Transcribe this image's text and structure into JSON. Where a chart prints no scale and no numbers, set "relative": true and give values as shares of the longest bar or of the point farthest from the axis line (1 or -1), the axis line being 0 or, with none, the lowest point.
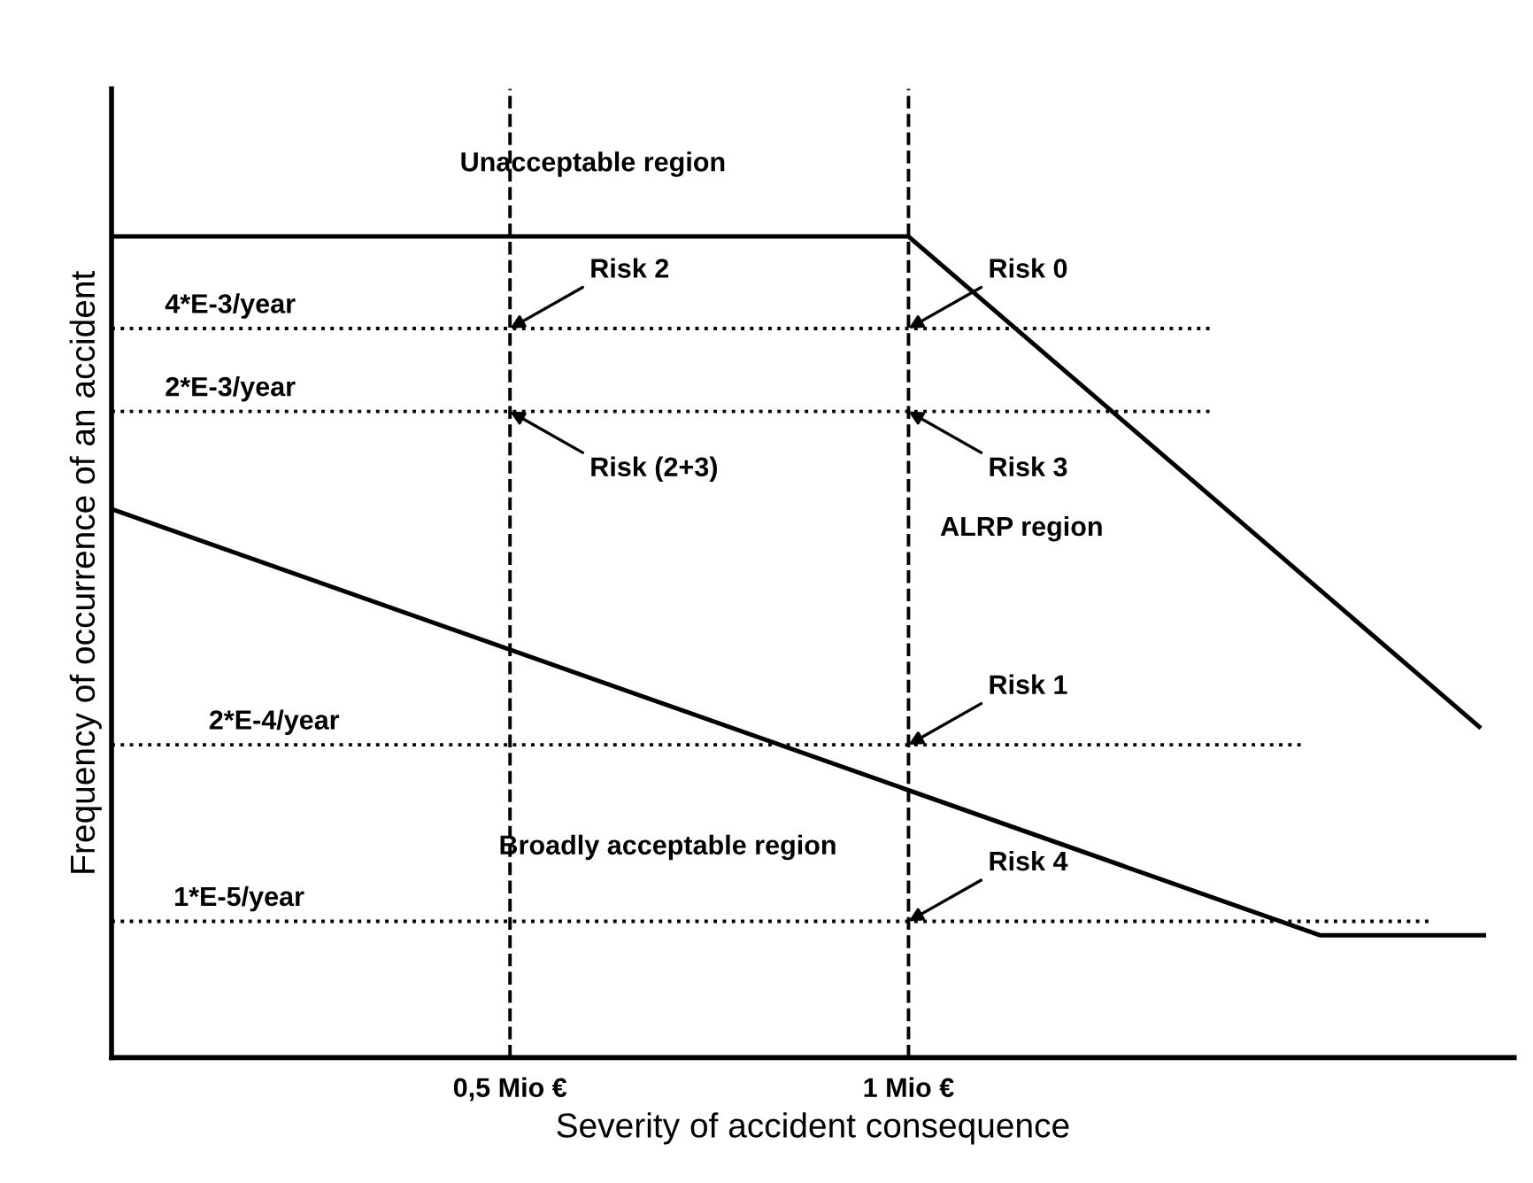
{
  "chart_data": {
    "type": "line",
    "relative": true,
    "xlabel": "Severity of accident consequence",
    "ylabel": "Frequency of occurrence of an accident",
    "xlim": [
      0,
      1.76
    ],
    "xticks": [
      {
        "value": 0.5,
        "label": "0,5 Mio €"
      },
      {
        "value": 1,
        "label": "1 Mio €"
      }
    ],
    "tick_labels": "x",
    "grid": false,
    "legend": false,
    "series": [
      {
        "color": "#000000",
        "line_style": "solid",
        "x": [
          0,
          1.0,
          1.716
        ],
        "values": [
          1,
          1,
          0.403
        ]
      },
      {
        "color": "#000000",
        "line_style": "solid",
        "x": [
          0,
          1.516,
          1.722
        ],
        "values": [
          0.668,
          0.149,
          0.149
        ]
      },
      {
        "color": "#000000",
        "line_style": "dotted",
        "x": [
          0,
          1.378
        ],
        "values": [
          0.888,
          0.888
        ]
      },
      {
        "color": "#000000",
        "line_style": "dotted",
        "x": [
          0,
          1.382
        ],
        "values": [
          0.787,
          0.787
        ]
      },
      {
        "color": "#000000",
        "line_style": "dotted",
        "x": [
          0,
          1.498
        ],
        "values": [
          0.381,
          0.381
        ]
      },
      {
        "color": "#000000",
        "line_style": "dotted",
        "x": [
          0,
          1.656
        ],
        "values": [
          0.166,
          0.166
        ]
      }
    ],
    "ref_lines": [
      {
        "axis": "x",
        "value": 0.5,
        "color": "#000000",
        "line_style": "dashed"
      },
      {
        "axis": "x",
        "value": 1,
        "color": "#000000",
        "line_style": "dashed"
      }
    ],
    "annotations": [
      "Unacceptable region",
      "ALRP region",
      "Broadly acceptable region",
      {
        "text": "4*E-3/year",
        "x": 0.149,
        "y": 0.888
      },
      {
        "text": "2*E-3/year",
        "x": 0.149,
        "y": 0.787
      },
      {
        "text": "2*E-4/year",
        "x": 0.204,
        "y": 0.381
      },
      {
        "text": "1*E-5/year",
        "x": 0.16,
        "y": 0.166
      },
      {
        "text": "Risk 0",
        "x": 1,
        "y": 0.888
      },
      {
        "text": "Risk 2",
        "x": 0.5,
        "y": 0.888
      },
      {
        "text": "Risk 3",
        "x": 1,
        "y": 0.787
      },
      {
        "text": "Risk (2+3)",
        "x": 0.5,
        "y": 0.787
      },
      {
        "text": "Risk 1",
        "x": 1,
        "y": 0.381
      },
      {
        "text": "Risk 4",
        "x": 1,
        "y": 0.166
      }
    ]
  }
}
